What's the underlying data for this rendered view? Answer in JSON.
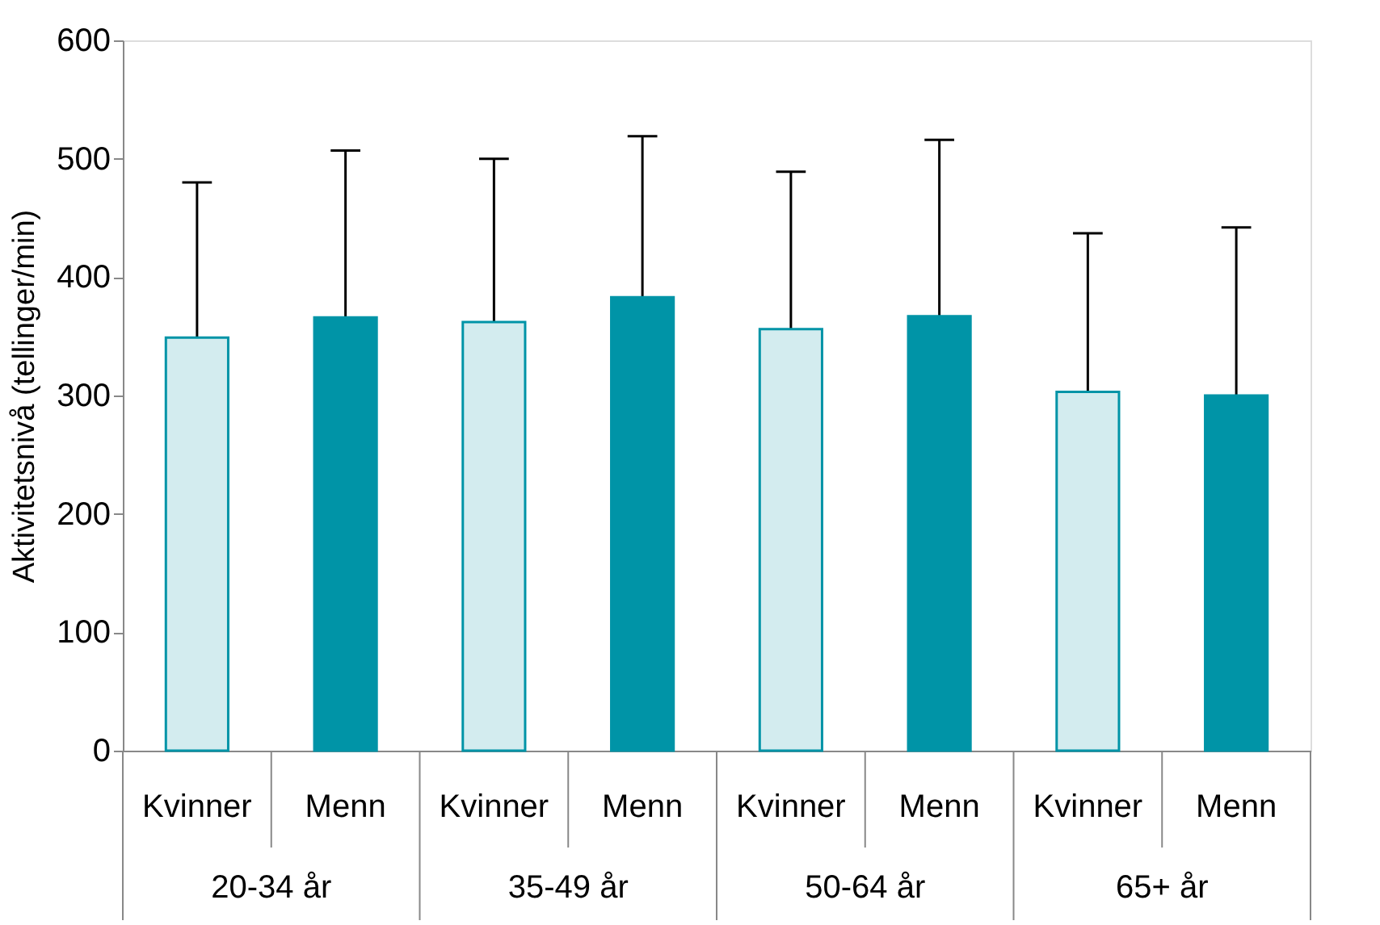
{
  "chart_data": {
    "type": "bar",
    "ylabel": "Aktivitetsnivå (tellinger/min)",
    "categories": [
      "20-34 år",
      "35-49 år",
      "50-64 år",
      "65+ år"
    ],
    "series": [
      {
        "name": "Kvinner",
        "color": "#d3ecef",
        "values": [
          349,
          362,
          356,
          303
        ],
        "errors": [
          131,
          138,
          133,
          134
        ]
      },
      {
        "name": "Menn",
        "color": "#0094a7",
        "values": [
          366,
          383,
          367,
          300
        ],
        "errors": [
          141,
          136,
          149,
          142
        ]
      }
    ],
    "ylim": [
      0,
      600
    ],
    "yticks": [
      0,
      100,
      200,
      300,
      400,
      500,
      600
    ],
    "grid": false
  }
}
